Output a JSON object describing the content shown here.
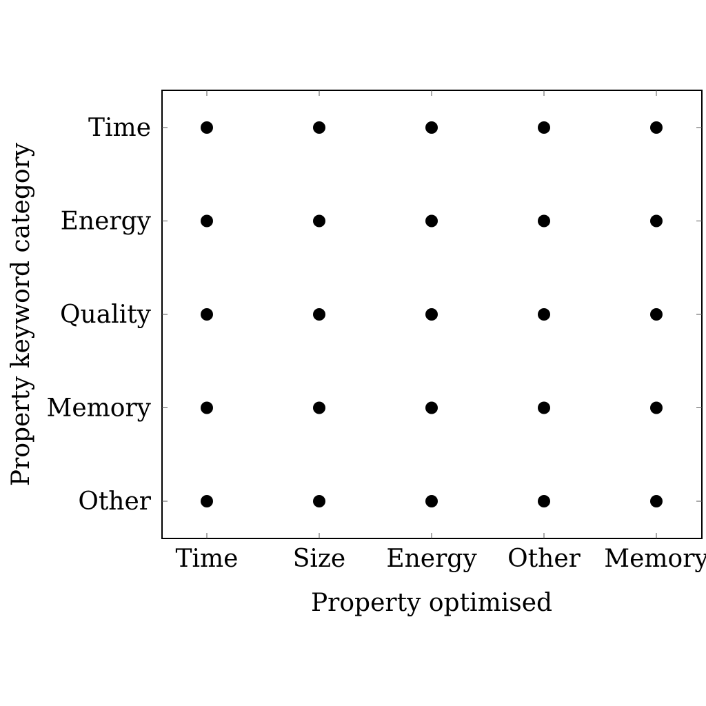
{
  "chart_data": {
    "type": "scatter",
    "title": "",
    "xlabel": "Property optimised",
    "ylabel": "Property keyword category",
    "x_categories": [
      "Time",
      "Size",
      "Energy",
      "Other",
      "Memory"
    ],
    "y_categories": [
      "Other",
      "Memory",
      "Quality",
      "Energy",
      "Time"
    ],
    "grid": false,
    "legend": "none",
    "marker_color": "#000000",
    "points": [
      {
        "x": "Time",
        "y": "Time"
      },
      {
        "x": "Size",
        "y": "Time"
      },
      {
        "x": "Energy",
        "y": "Time"
      },
      {
        "x": "Other",
        "y": "Time"
      },
      {
        "x": "Memory",
        "y": "Time"
      },
      {
        "x": "Time",
        "y": "Energy"
      },
      {
        "x": "Size",
        "y": "Energy"
      },
      {
        "x": "Energy",
        "y": "Energy"
      },
      {
        "x": "Other",
        "y": "Energy"
      },
      {
        "x": "Memory",
        "y": "Energy"
      },
      {
        "x": "Time",
        "y": "Quality"
      },
      {
        "x": "Size",
        "y": "Quality"
      },
      {
        "x": "Energy",
        "y": "Quality"
      },
      {
        "x": "Other",
        "y": "Quality"
      },
      {
        "x": "Memory",
        "y": "Quality"
      },
      {
        "x": "Time",
        "y": "Memory"
      },
      {
        "x": "Size",
        "y": "Memory"
      },
      {
        "x": "Energy",
        "y": "Memory"
      },
      {
        "x": "Other",
        "y": "Memory"
      },
      {
        "x": "Memory",
        "y": "Memory"
      },
      {
        "x": "Time",
        "y": "Other"
      },
      {
        "x": "Size",
        "y": "Other"
      },
      {
        "x": "Energy",
        "y": "Other"
      },
      {
        "x": "Other",
        "y": "Other"
      },
      {
        "x": "Memory",
        "y": "Other"
      }
    ]
  }
}
